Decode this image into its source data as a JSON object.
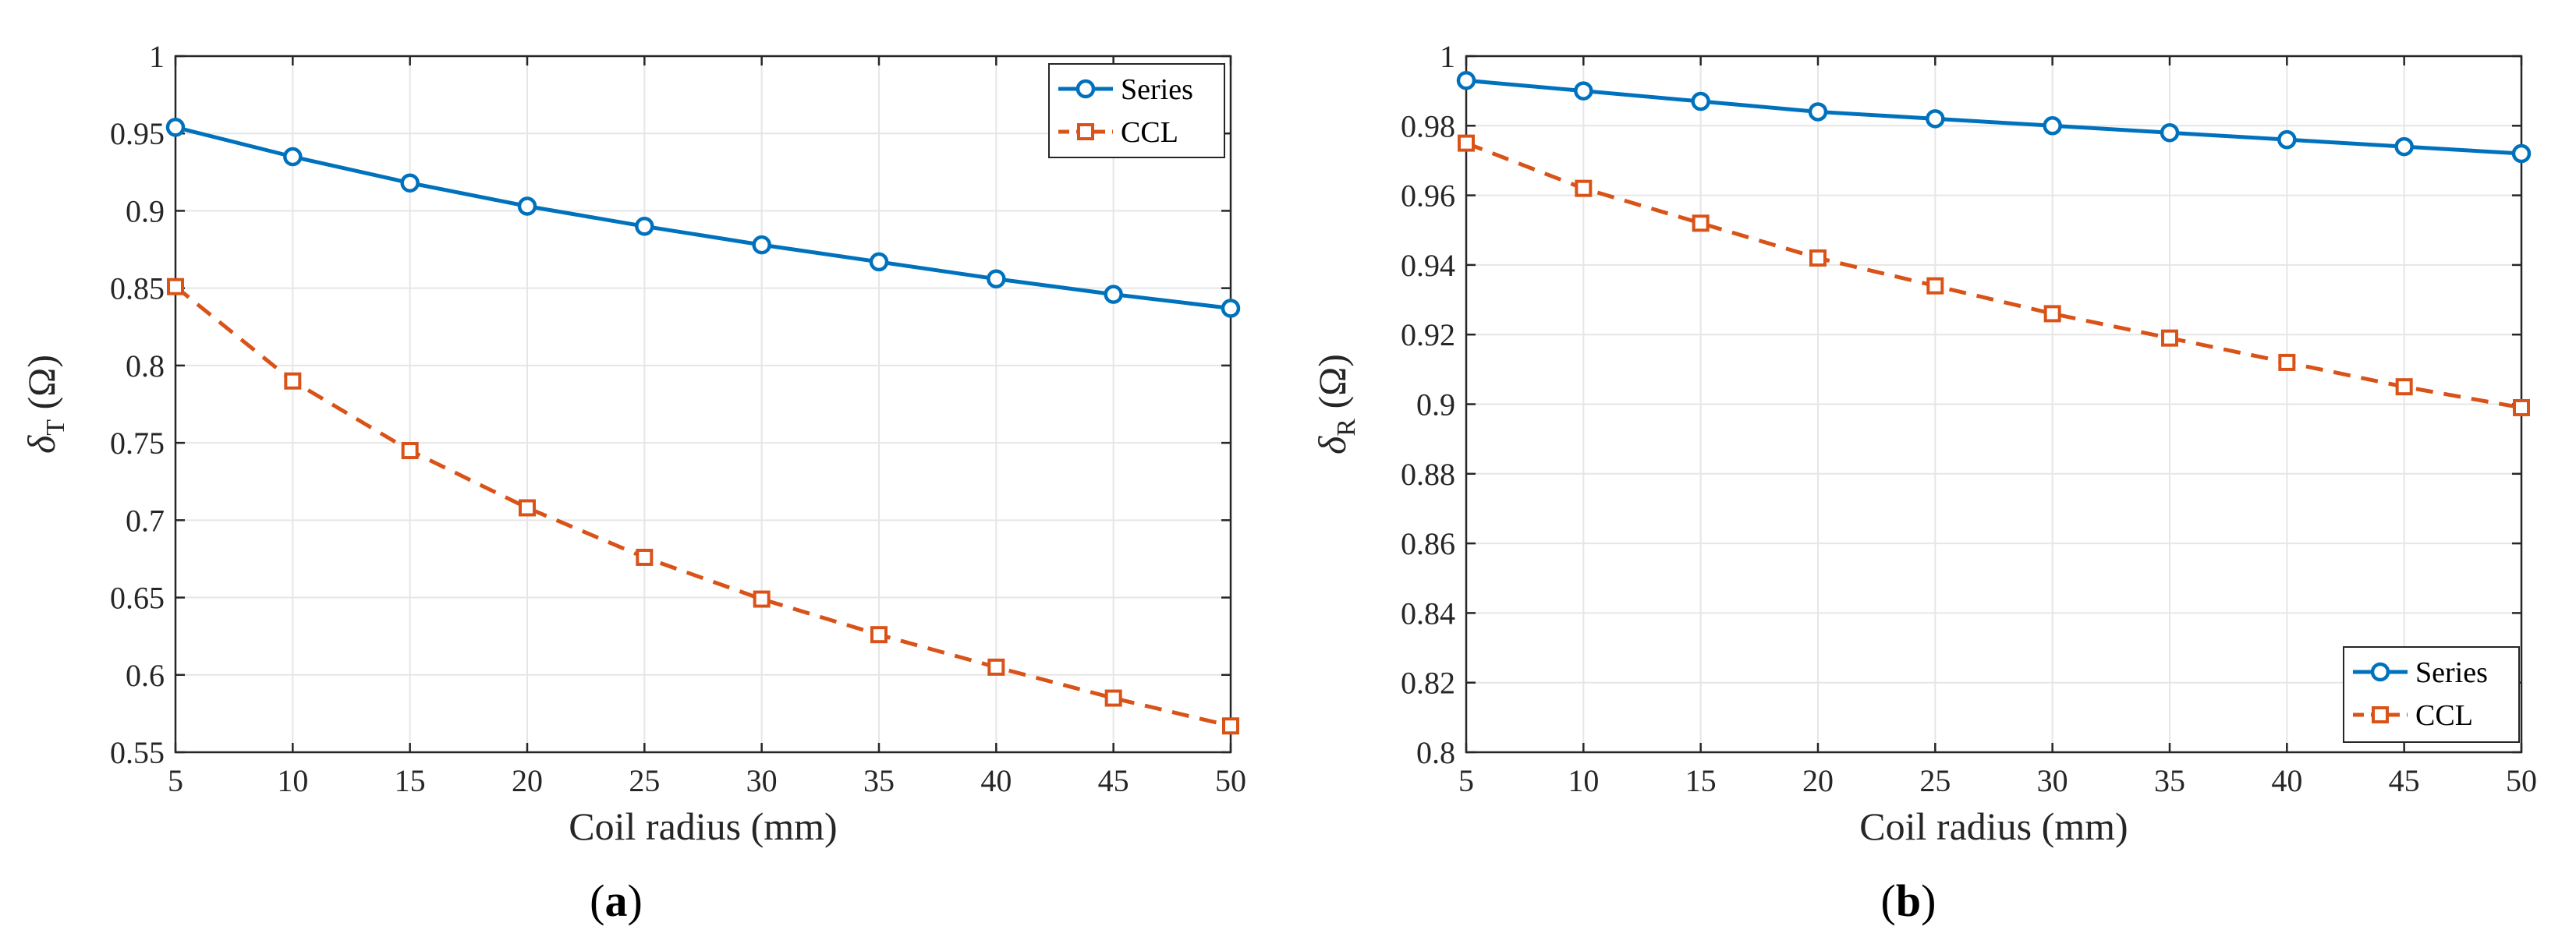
{
  "chart_data": [
    {
      "type": "line",
      "caption": {
        "open": "(",
        "letter": "a",
        "close": ")"
      },
      "xlabel": "Coil radius (mm)",
      "ylabel": {
        "symbol": "δ",
        "subscript": "T",
        "unit": " (Ω)"
      },
      "xlim": [
        5,
        50
      ],
      "ylim": [
        0.55,
        1
      ],
      "xticks": [
        5,
        10,
        15,
        20,
        25,
        30,
        35,
        40,
        45,
        50
      ],
      "yticks": [
        "0.55",
        "0.6",
        "0.65",
        "0.7",
        "0.75",
        "0.8",
        "0.85",
        "0.9",
        "0.95",
        "1"
      ],
      "grid": true,
      "legend_position": "top-right",
      "x": [
        5,
        10,
        15,
        20,
        25,
        30,
        35,
        40,
        45,
        50
      ],
      "series": [
        {
          "name": "Series",
          "color": "#0072bd",
          "marker": "circle",
          "dash": "solid",
          "values": [
            0.954,
            0.935,
            0.918,
            0.903,
            0.89,
            0.878,
            0.867,
            0.856,
            0.846,
            0.837
          ]
        },
        {
          "name": "CCL",
          "color": "#d95319",
          "marker": "square",
          "dash": "dashed",
          "values": [
            0.851,
            0.79,
            0.745,
            0.708,
            0.676,
            0.649,
            0.626,
            0.605,
            0.585,
            0.567
          ]
        }
      ]
    },
    {
      "type": "line",
      "caption": {
        "open": "(",
        "letter": "b",
        "close": ")"
      },
      "xlabel": "Coil radius (mm)",
      "ylabel": {
        "symbol": "δ",
        "subscript": "R",
        "unit": " (Ω)"
      },
      "xlim": [
        5,
        50
      ],
      "ylim": [
        0.8,
        1
      ],
      "xticks": [
        5,
        10,
        15,
        20,
        25,
        30,
        35,
        40,
        45,
        50
      ],
      "yticks": [
        "0.8",
        "0.82",
        "0.84",
        "0.86",
        "0.88",
        "0.9",
        "0.92",
        "0.94",
        "0.96",
        "0.98",
        "1"
      ],
      "grid": true,
      "legend_position": "bottom-right",
      "x": [
        5,
        10,
        15,
        20,
        25,
        30,
        35,
        40,
        45,
        50
      ],
      "series": [
        {
          "name": "Series",
          "color": "#0072bd",
          "marker": "circle",
          "dash": "solid",
          "values": [
            0.993,
            0.99,
            0.987,
            0.984,
            0.982,
            0.98,
            0.978,
            0.976,
            0.974,
            0.972
          ]
        },
        {
          "name": "CCL",
          "color": "#d95319",
          "marker": "square",
          "dash": "dashed",
          "values": [
            0.975,
            0.962,
            0.952,
            0.942,
            0.934,
            0.926,
            0.919,
            0.912,
            0.905,
            0.899
          ]
        }
      ]
    }
  ]
}
